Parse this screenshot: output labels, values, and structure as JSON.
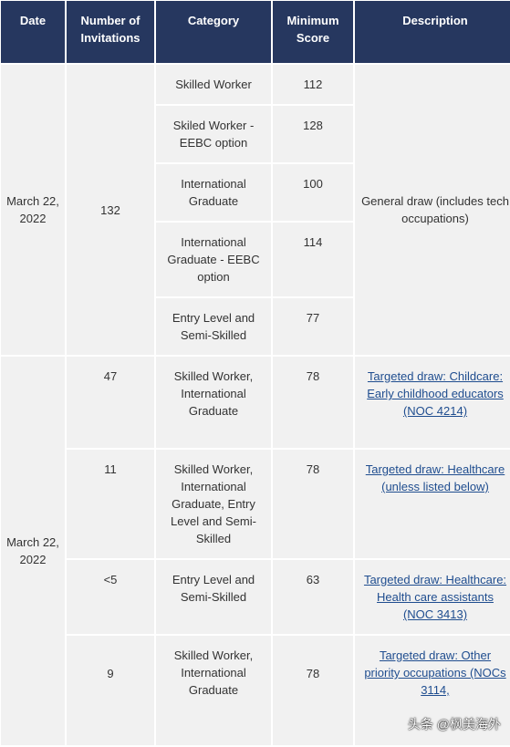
{
  "headers": {
    "date": "Date",
    "invitations": "Number of Invitations",
    "category": "Category",
    "score": "Minimum Score",
    "description": "Description"
  },
  "group1": {
    "date": "March 22, 2022",
    "invitations": "132",
    "description": "General draw (includes tech occupations)",
    "rows": [
      {
        "category": "Skilled Worker",
        "score": "112"
      },
      {
        "category": "Skiled Worker - EEBC option",
        "score": "128"
      },
      {
        "category": "International Graduate",
        "score": "100"
      },
      {
        "category": "International Graduate - EEBC option",
        "score": "114"
      },
      {
        "category": "Entry Level and Semi-Skilled",
        "score": "77"
      }
    ]
  },
  "group2": {
    "date": "March 22, 2022",
    "rows": [
      {
        "invitations": "47",
        "category": "Skilled Worker, International Graduate",
        "score": "78",
        "description": "Targeted draw: Childcare: Early childhood educators (NOC 4214)"
      },
      {
        "invitations": "11",
        "category": "Skilled Worker, International Graduate, Entry Level and Semi-Skilled",
        "score": "78",
        "description": "Targeted draw: Healthcare (unless listed below)"
      },
      {
        "invitations": "<5",
        "category": "Entry Level and Semi-Skilled",
        "score": "63",
        "description": "Targeted draw: Healthcare: Health care assistants (NOC 3413)"
      },
      {
        "invitations": "9",
        "category": "Skilled Worker, International Graduate",
        "score": "78",
        "description": "Targeted draw: Other priority occupations (NOCs 3114,"
      }
    ]
  },
  "watermark": "头条 @枫美海外"
}
